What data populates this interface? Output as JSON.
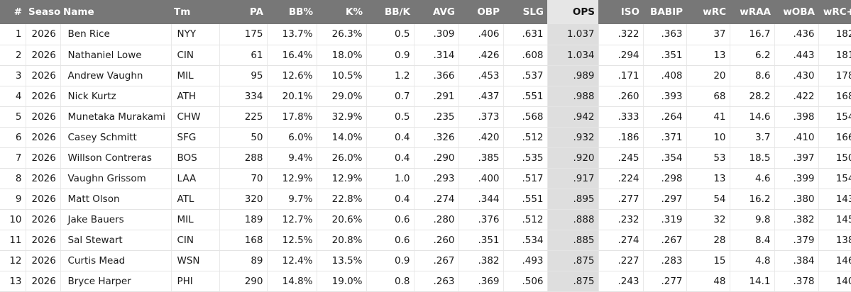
{
  "table": {
    "sorted_column": "OPS",
    "columns": [
      "#",
      "Season",
      "Name",
      "Tm",
      "PA",
      "BB%",
      "K%",
      "BB/K",
      "AVG",
      "OBP",
      "SLG",
      "OPS",
      "ISO",
      "BABIP",
      "wRC",
      "wRAA",
      "wOBA",
      "wRC+"
    ],
    "rows": [
      [
        "1",
        "2026",
        "Ben Rice",
        "NYY",
        "175",
        "13.7%",
        "26.3%",
        "0.5",
        ".309",
        ".406",
        ".631",
        "1.037",
        ".322",
        ".363",
        "37",
        "16.7",
        ".436",
        "182"
      ],
      [
        "2",
        "2026",
        "Nathaniel Lowe",
        "CIN",
        "61",
        "16.4%",
        "18.0%",
        "0.9",
        ".314",
        ".426",
        ".608",
        "1.034",
        ".294",
        ".351",
        "13",
        "6.2",
        ".443",
        "181"
      ],
      [
        "3",
        "2026",
        "Andrew Vaughn",
        "MIL",
        "95",
        "12.6%",
        "10.5%",
        "1.2",
        ".366",
        ".453",
        ".537",
        ".989",
        ".171",
        ".408",
        "20",
        "8.6",
        ".430",
        "178"
      ],
      [
        "4",
        "2026",
        "Nick Kurtz",
        "ATH",
        "334",
        "20.1%",
        "29.0%",
        "0.7",
        ".291",
        ".437",
        ".551",
        ".988",
        ".260",
        ".393",
        "68",
        "28.2",
        ".422",
        "168"
      ],
      [
        "5",
        "2026",
        "Munetaka Murakami",
        "CHW",
        "225",
        "17.8%",
        "32.9%",
        "0.5",
        ".235",
        ".373",
        ".568",
        ".942",
        ".333",
        ".264",
        "41",
        "14.6",
        ".398",
        "154"
      ],
      [
        "6",
        "2026",
        "Casey Schmitt",
        "SFG",
        "50",
        "6.0%",
        "14.0%",
        "0.4",
        ".326",
        ".420",
        ".512",
        ".932",
        ".186",
        ".371",
        "10",
        "3.7",
        ".410",
        "166"
      ],
      [
        "7",
        "2026",
        "Willson Contreras",
        "BOS",
        "288",
        "9.4%",
        "26.0%",
        "0.4",
        ".290",
        ".385",
        ".535",
        ".920",
        ".245",
        ".354",
        "53",
        "18.5",
        ".397",
        "150"
      ],
      [
        "8",
        "2026",
        "Vaughn Grissom",
        "LAA",
        "70",
        "12.9%",
        "12.9%",
        "1.0",
        ".293",
        ".400",
        ".517",
        ".917",
        ".224",
        ".298",
        "13",
        "4.6",
        ".399",
        "154"
      ],
      [
        "9",
        "2026",
        "Matt Olson",
        "ATL",
        "320",
        "9.7%",
        "22.8%",
        "0.4",
        ".274",
        ".344",
        ".551",
        ".895",
        ".277",
        ".297",
        "54",
        "16.2",
        ".380",
        "143"
      ],
      [
        "10",
        "2026",
        "Jake Bauers",
        "MIL",
        "189",
        "12.7%",
        "20.6%",
        "0.6",
        ".280",
        ".376",
        ".512",
        ".888",
        ".232",
        ".319",
        "32",
        "9.8",
        ".382",
        "145"
      ],
      [
        "11",
        "2026",
        "Sal Stewart",
        "CIN",
        "168",
        "12.5%",
        "20.8%",
        "0.6",
        ".260",
        ".351",
        ".534",
        ".885",
        ".274",
        ".267",
        "28",
        "8.4",
        ".379",
        "138"
      ],
      [
        "12",
        "2026",
        "Curtis Mead",
        "WSN",
        "89",
        "12.4%",
        "13.5%",
        "0.9",
        ".267",
        ".382",
        ".493",
        ".875",
        ".227",
        ".283",
        "15",
        "4.8",
        ".384",
        "146"
      ],
      [
        "13",
        "2026",
        "Bryce Harper",
        "PHI",
        "290",
        "14.8%",
        "19.0%",
        "0.8",
        ".263",
        ".369",
        ".506",
        ".875",
        ".243",
        ".277",
        "48",
        "14.1",
        ".378",
        "140"
      ]
    ]
  }
}
